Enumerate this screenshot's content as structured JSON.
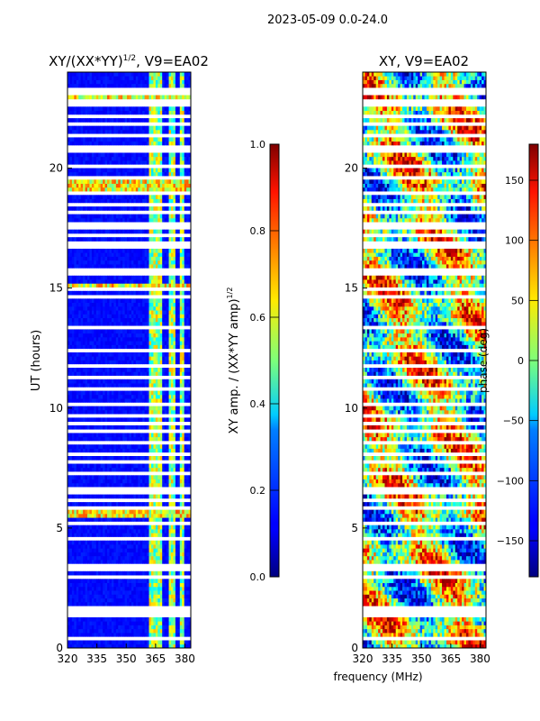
{
  "suptitle": "2023-05-09 0.0-24.0",
  "x_axis_label": "frequency (MHz)",
  "chart_data": [
    {
      "type": "heatmap",
      "title": "XY/(XX*YY)^1/2, V9=EA02",
      "title_main": "XY/(XX*YY)",
      "title_sup": "1/2",
      "title_suffix": ", V9=EA02",
      "xlabel": "",
      "ylabel": "UT (hours)",
      "xlim": [
        320,
        383
      ],
      "ylim": [
        0,
        24
      ],
      "xticks": [
        320,
        335,
        350,
        365,
        380
      ],
      "yticks": [
        0,
        5,
        10,
        15,
        20
      ],
      "colorbar": {
        "label": "XY amp. / (XX*YY amp)^1/2",
        "label_main": "XY amp. / (XX*YY amp)",
        "label_sup": "1/2",
        "range": [
          0.0,
          1.0
        ],
        "ticks": [
          "0.0",
          "0.2",
          "0.4",
          "0.6",
          "0.8",
          "1.0"
        ],
        "colormap": "jet"
      },
      "gaps_hours": [
        0.4,
        1.4,
        1.6,
        2.9,
        3.3,
        3.5,
        4.5,
        5.2,
        5.9,
        6.1,
        6.5,
        6.7,
        7.3,
        7.8,
        8.1,
        8.6,
        9.1,
        9.4,
        9.7,
        10.2,
        10.8,
        11.3,
        11.8,
        12.4,
        13.3,
        14.6,
        14.9,
        15.6,
        15.8,
        16.8,
        17.2,
        17.6,
        18.1,
        18.5,
        19.0,
        19.6,
        20.1,
        20.8,
        21.3,
        21.8,
        22.2,
        22.6,
        22.8,
        23.1,
        23.3
      ],
      "bright_freq_bands_mhz": [
        [
          362,
          368
        ],
        [
          372,
          375
        ],
        [
          377,
          380
        ]
      ],
      "rfi_rows_hours": [
        19.2,
        19.4,
        22.9,
        15.1,
        5.6
      ]
    },
    {
      "type": "heatmap",
      "title": "XY, V9=EA02",
      "xlabel": "frequency (MHz)",
      "ylabel": "",
      "xlim": [
        320,
        383
      ],
      "ylim": [
        0,
        24
      ],
      "xticks": [
        320,
        335,
        350,
        365,
        380
      ],
      "yticks": [
        0,
        5,
        10,
        15,
        20
      ],
      "colorbar": {
        "label": "phase (deg)",
        "range": [
          -180,
          180
        ],
        "ticks": [
          "150",
          "100",
          "50",
          "0",
          "−50",
          "−100",
          "−150"
        ],
        "colormap": "jet"
      },
      "gaps_hours": [
        0.4,
        1.4,
        1.6,
        2.9,
        3.3,
        3.5,
        4.5,
        5.2,
        5.9,
        6.1,
        6.5,
        6.7,
        7.3,
        7.8,
        8.1,
        8.6,
        9.1,
        9.4,
        9.7,
        10.2,
        10.8,
        11.3,
        11.8,
        12.4,
        13.3,
        14.6,
        14.9,
        15.6,
        15.8,
        16.8,
        17.2,
        17.6,
        18.1,
        18.5,
        19.0,
        19.6,
        20.1,
        20.8,
        21.3,
        21.8,
        22.2,
        22.6,
        22.8,
        23.1,
        23.3
      ]
    }
  ]
}
